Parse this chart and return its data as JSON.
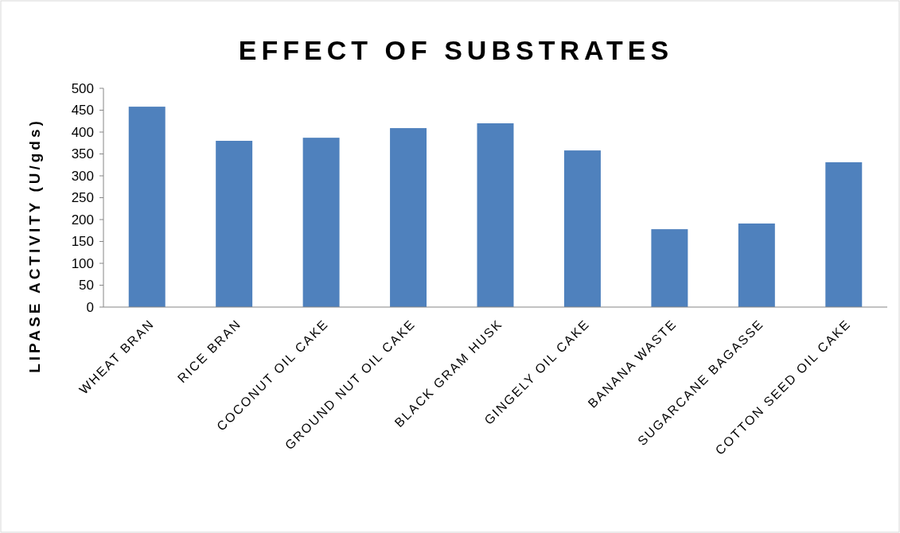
{
  "chart_data": {
    "type": "bar",
    "title": "EFFECT OF SUBSTRATES",
    "ylabel": "LIPASE ACTIVITY (U/gds)",
    "categories": [
      "WHEAT BRAN",
      "RICE BRAN",
      "COCONUT OIL CAKE",
      "GROUND NUT OIL CAKE",
      "BLACK GRAM HUSK",
      "GINGELY OIL CAKE",
      "BANANA WASTE",
      "SUGARCANE BAGASSE",
      "COTTON SEED OIL CAKE"
    ],
    "values": [
      458,
      380,
      387,
      409,
      420,
      358,
      178,
      191,
      331
    ],
    "color": "#4f81bd",
    "ylim": [
      0,
      500
    ],
    "yticks": [
      0,
      50,
      100,
      150,
      200,
      250,
      300,
      350,
      400,
      450,
      500
    ],
    "grid": false
  }
}
